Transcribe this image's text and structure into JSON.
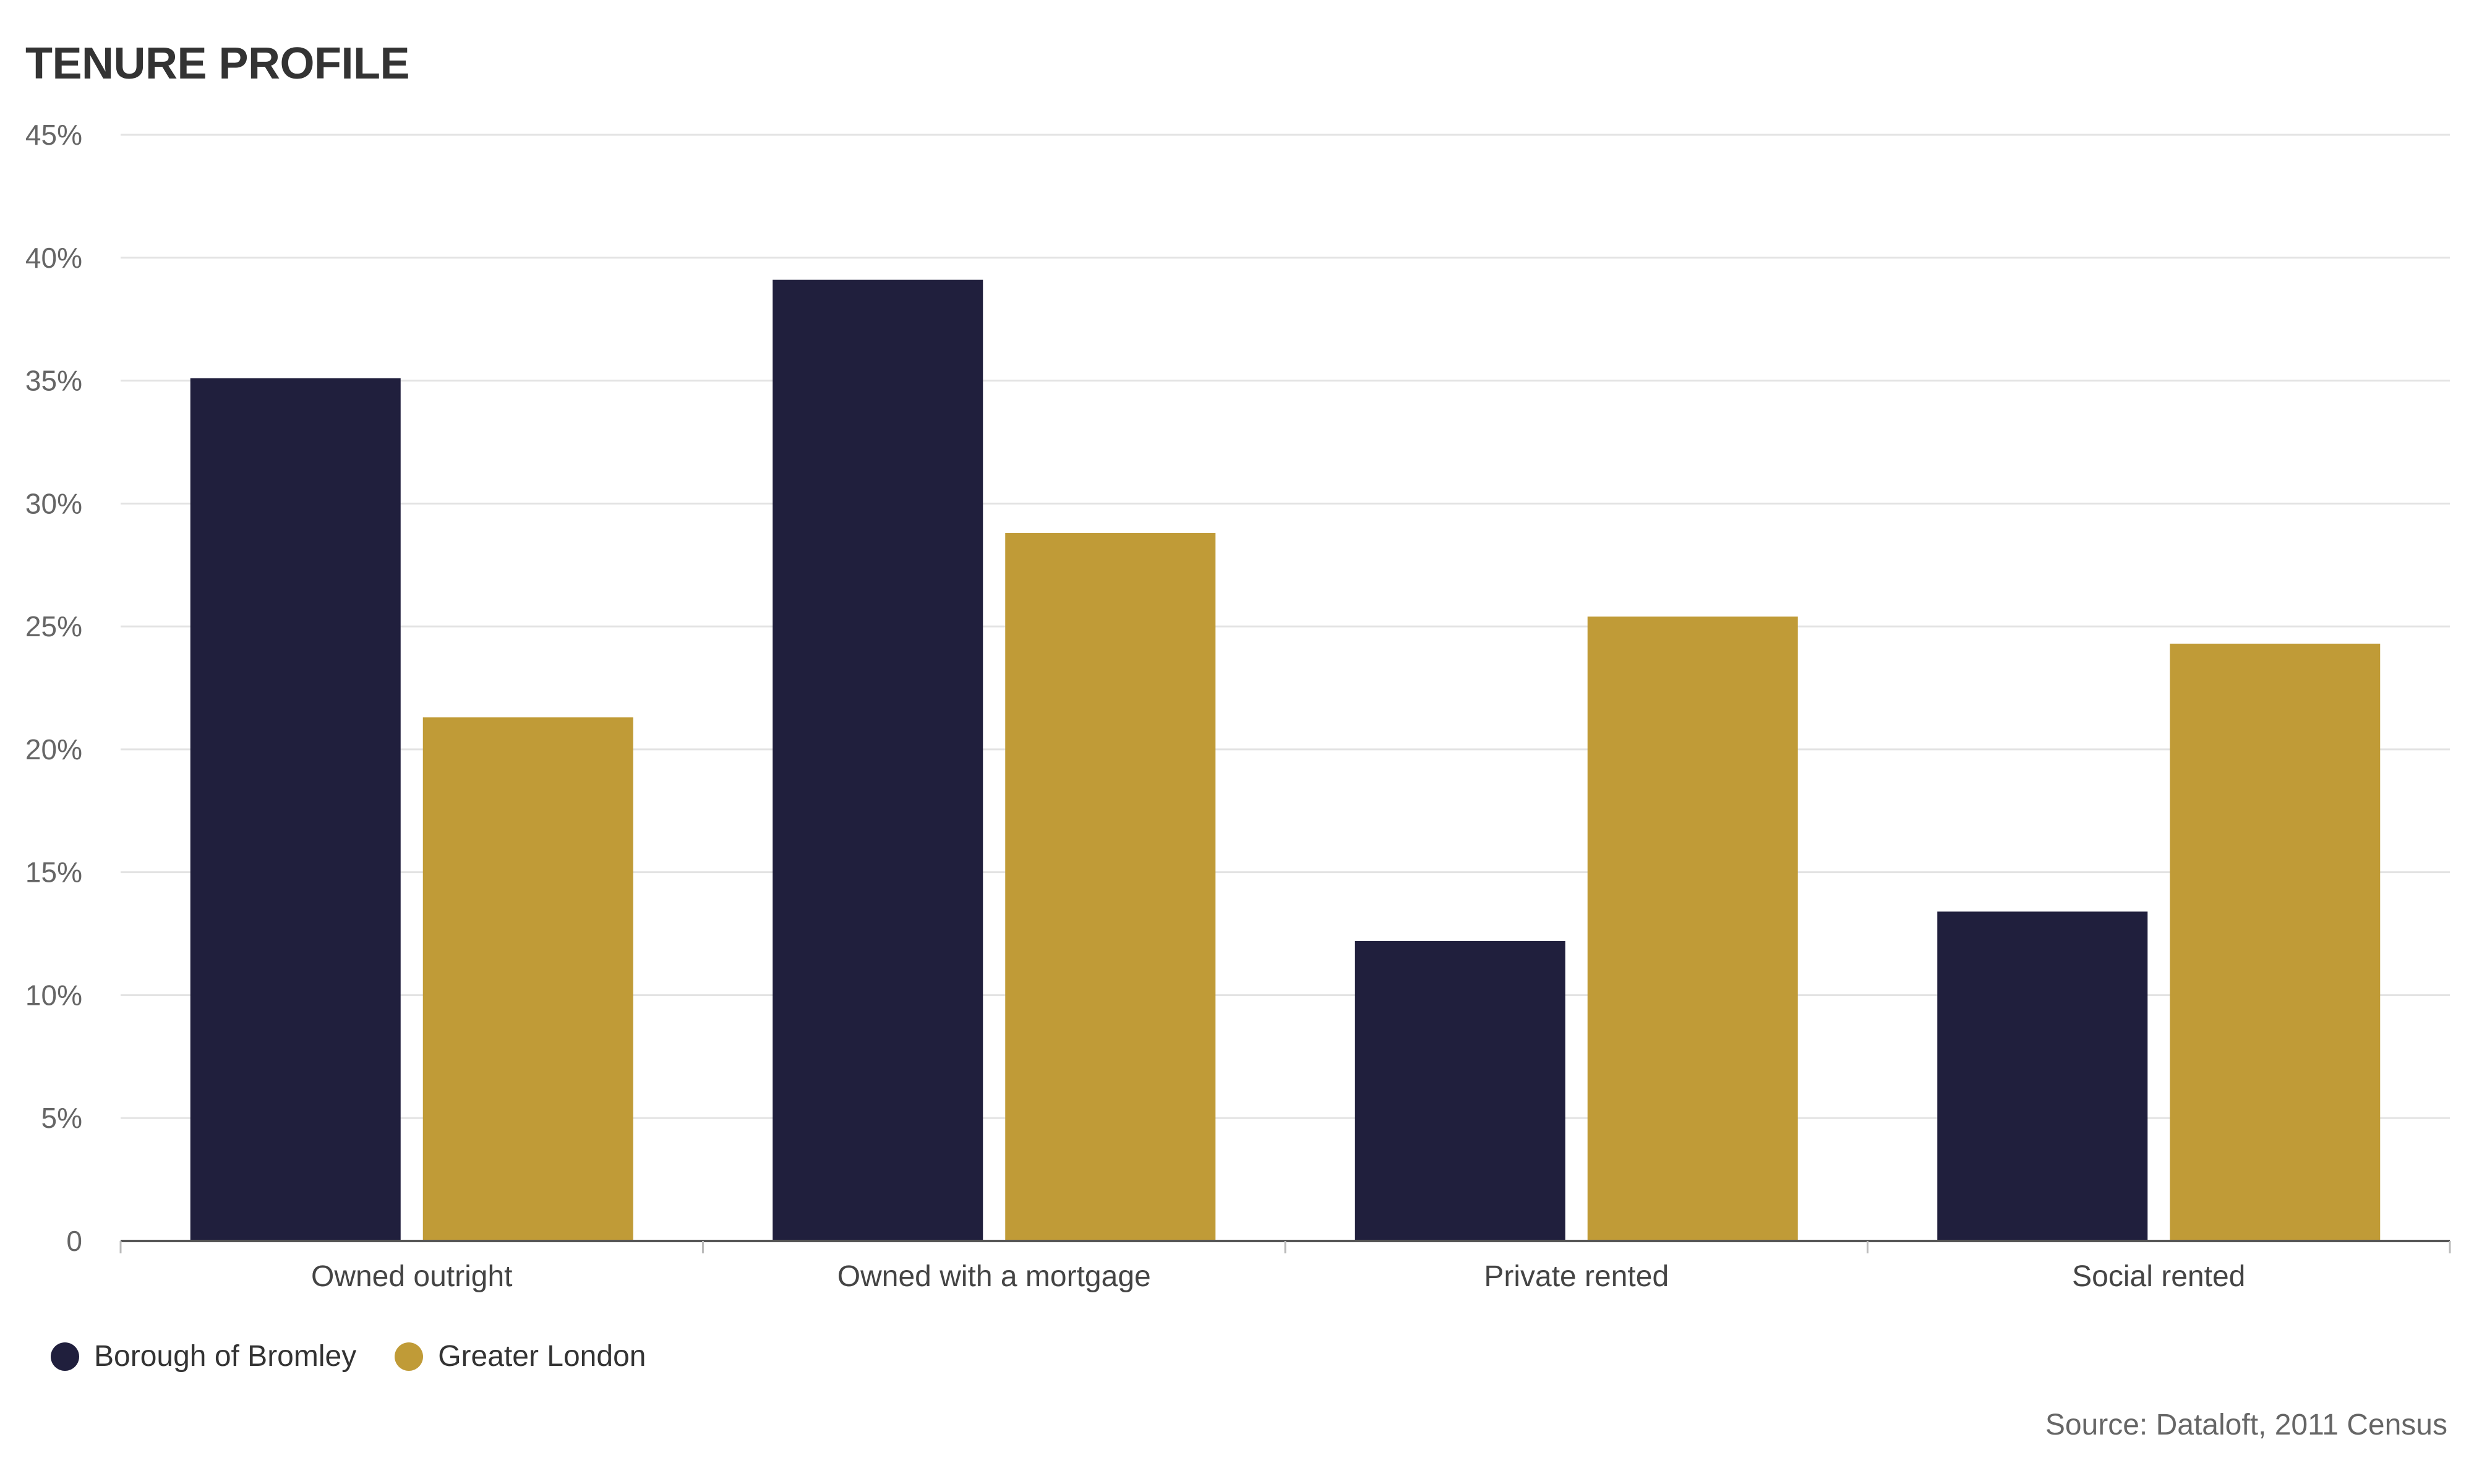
{
  "chart_data": {
    "type": "bar",
    "title": "TENURE PROFILE",
    "categories": [
      "Owned outright",
      "Owned with a mortgage",
      "Private rented",
      "Social rented"
    ],
    "series": [
      {
        "name": "Borough of Bromley",
        "color": "#201f3d",
        "values": [
          35.1,
          39.1,
          12.2,
          13.4
        ]
      },
      {
        "name": "Greater London",
        "color": "#c09b37",
        "values": [
          21.3,
          28.8,
          25.4,
          24.3
        ]
      }
    ],
    "ylim": [
      0,
      45
    ],
    "yticks": [
      0,
      5,
      10,
      15,
      20,
      25,
      30,
      35,
      40,
      45
    ],
    "ytick_labels": [
      "0",
      "5%",
      "10%",
      "15%",
      "20%",
      "25%",
      "30%",
      "35%",
      "40%",
      "45%"
    ],
    "xlabel": "",
    "ylabel": "",
    "grid": true,
    "legend_position": "bottom-left",
    "source": "Source: Dataloft, 2011 Census"
  }
}
